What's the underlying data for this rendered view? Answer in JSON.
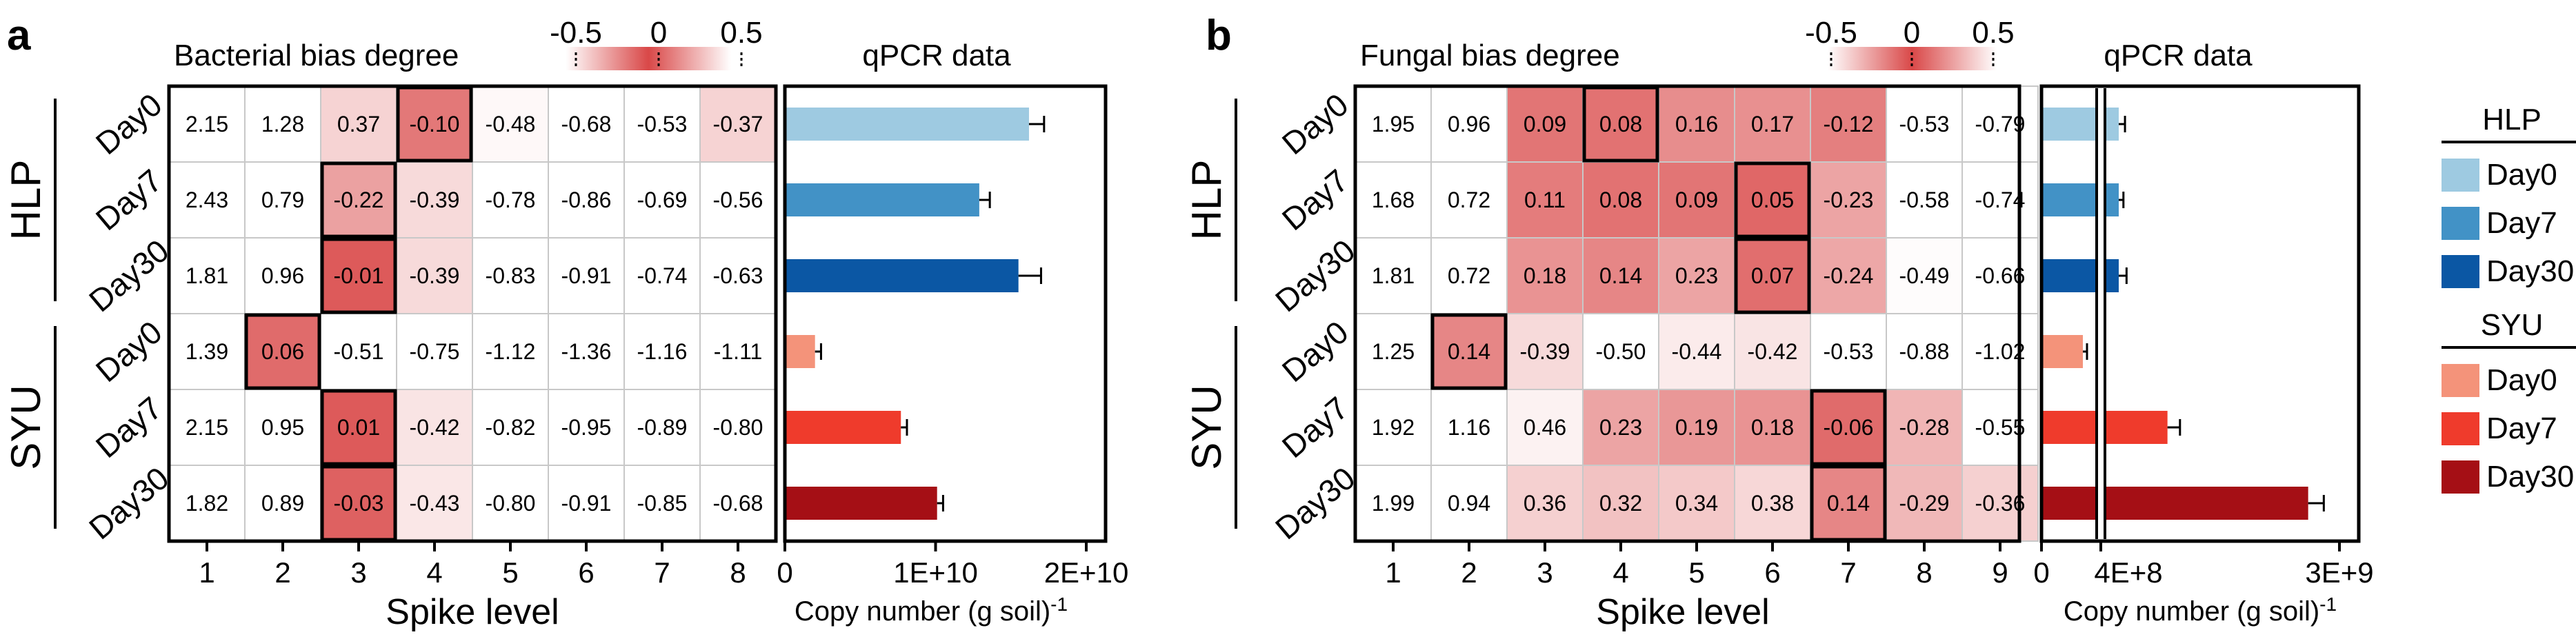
{
  "panels": {
    "a": {
      "letter": "a",
      "heatmap_title": "Bacterial bias degree",
      "qpcr_title": "qPCR data",
      "xlabel": "Spike level",
      "qpcr_xlabel": "Copy number (g soil)",
      "qpcr_xlabel_sup": "-1",
      "colorbar_ticks": [
        "-0.5",
        "0",
        "0.5"
      ],
      "groups": [
        "HLP",
        "SYU"
      ],
      "row_labels": [
        "Day0",
        "Day7",
        "Day30",
        "Day0",
        "Day7",
        "Day30"
      ],
      "spike_levels": [
        "1",
        "2",
        "3",
        "4",
        "5",
        "6",
        "7",
        "8"
      ],
      "qpcr_ticks": [
        "0",
        "1E+10",
        "2E+10"
      ]
    },
    "b": {
      "letter": "b",
      "heatmap_title": "Fungal bias degree",
      "qpcr_title": "qPCR data",
      "xlabel": "Spike level",
      "qpcr_xlabel": "Copy number (g soil)",
      "qpcr_xlabel_sup": "-1",
      "colorbar_ticks": [
        "-0.5",
        "0",
        "0.5"
      ],
      "groups": [
        "HLP",
        "SYU"
      ],
      "row_labels": [
        "Day0",
        "Day7",
        "Day30",
        "Day0",
        "Day7",
        "Day30"
      ],
      "spike_levels": [
        "1",
        "2",
        "3",
        "4",
        "5",
        "6",
        "7",
        "8",
        "9"
      ],
      "qpcr_ticks": [
        "0",
        "4E+8",
        "3E+9"
      ]
    }
  },
  "legend": {
    "groups": [
      {
        "title": "HLP",
        "items": [
          {
            "label": "Day0",
            "color": "#9ecae1"
          },
          {
            "label": "Day7",
            "color": "#4292c6"
          },
          {
            "label": "Day30",
            "color": "#0b57a4"
          }
        ]
      },
      {
        "title": "SYU",
        "items": [
          {
            "label": "Day0",
            "color": "#f4937a"
          },
          {
            "label": "Day7",
            "color": "#ef3b2c"
          },
          {
            "label": "Day30",
            "color": "#a50f15"
          }
        ]
      }
    ]
  },
  "chart_data": [
    {
      "type": "heatmap",
      "panel": "a",
      "title": "Bacterial bias degree",
      "xlabel": "Spike level",
      "x": [
        1,
        2,
        3,
        4,
        5,
        6,
        7,
        8
      ],
      "rows": [
        "HLP Day0",
        "HLP Day7",
        "HLP Day30",
        "SYU Day0",
        "SYU Day7",
        "SYU Day30"
      ],
      "values": [
        [
          2.15,
          1.28,
          0.37,
          -0.1,
          -0.48,
          -0.68,
          -0.53,
          -0.37
        ],
        [
          2.43,
          0.79,
          -0.22,
          -0.39,
          -0.78,
          -0.86,
          -0.69,
          -0.56
        ],
        [
          1.81,
          0.96,
          -0.01,
          -0.39,
          -0.83,
          -0.91,
          -0.74,
          -0.63
        ],
        [
          1.39,
          0.06,
          -0.51,
          -0.75,
          -1.12,
          -1.36,
          -1.16,
          -1.11
        ],
        [
          2.15,
          0.95,
          0.01,
          -0.42,
          -0.82,
          -0.95,
          -0.89,
          -0.8
        ],
        [
          1.82,
          0.89,
          -0.03,
          -0.43,
          -0.8,
          -0.91,
          -0.85,
          -0.68
        ]
      ],
      "value_labels": [
        [
          "2.15",
          "1.28",
          "0.37",
          "-0.10",
          "-0.48",
          "-0.68",
          "-0.53",
          "-0.37"
        ],
        [
          "2.43",
          "0.79",
          "-0.22",
          "-0.39",
          "-0.78",
          "-0.86",
          "-0.69",
          "-0.56"
        ],
        [
          "1.81",
          "0.96",
          "-0.01",
          "-0.39",
          "-0.83",
          "-0.91",
          "-0.74",
          "-0.63"
        ],
        [
          "1.39",
          "0.06",
          "-0.51",
          "-0.75",
          "-1.12",
          "-1.36",
          "-1.16",
          "-1.11"
        ],
        [
          "2.15",
          "0.95",
          "0.01",
          "-0.42",
          "-0.82",
          "-0.95",
          "-0.89",
          "-0.80"
        ],
        [
          "1.82",
          "0.89",
          "-0.03",
          "-0.43",
          "-0.80",
          "-0.91",
          "-0.85",
          "-0.68"
        ]
      ],
      "highlight_columns": [
        4,
        3,
        3,
        2,
        3,
        3
      ],
      "color_scale": {
        "min": -0.5,
        "max": 0.5,
        "ticks": [
          "-0.5",
          "0",
          "0.5"
        ]
      }
    },
    {
      "type": "bar",
      "panel": "a",
      "title": "qPCR data",
      "orientation": "horizontal",
      "xlabel": "Copy number (g soil)-1",
      "categories": [
        "HLP Day0",
        "HLP Day7",
        "HLP Day30",
        "SYU Day0",
        "SYU Day7",
        "SYU Day30"
      ],
      "values": [
        16200000000.0,
        12900000000.0,
        15500000000.0,
        2000000000.0,
        7700000000.0,
        10100000000.0
      ],
      "errors": [
        1000000000.0,
        700000000.0,
        1500000000.0,
        400000000.0,
        400000000.0,
        400000000.0
      ],
      "colors": [
        "#9ecae1",
        "#4292c6",
        "#0b57a4",
        "#f4937a",
        "#ef3b2c",
        "#a50f15"
      ],
      "xlim": [
        0,
        20000000000.0
      ],
      "ticks": [
        0,
        10000000000.0,
        20000000000.0
      ],
      "tick_labels": [
        "0",
        "1E+10",
        "2E+10"
      ]
    },
    {
      "type": "heatmap",
      "panel": "b",
      "title": "Fungal bias degree",
      "xlabel": "Spike level",
      "x": [
        1,
        2,
        3,
        4,
        5,
        6,
        7,
        8,
        9
      ],
      "rows": [
        "HLP Day0",
        "HLP Day7",
        "HLP Day30",
        "SYU Day0",
        "SYU Day7",
        "SYU Day30"
      ],
      "values": [
        [
          1.95,
          0.96,
          0.09,
          0.08,
          0.16,
          0.17,
          -0.12,
          -0.53,
          -0.79
        ],
        [
          1.68,
          0.72,
          0.11,
          0.08,
          0.09,
          0.05,
          -0.23,
          -0.58,
          -0.74
        ],
        [
          1.81,
          0.72,
          0.18,
          0.14,
          0.23,
          0.07,
          -0.24,
          -0.49,
          -0.66
        ],
        [
          1.25,
          0.14,
          -0.39,
          -0.5,
          -0.44,
          -0.42,
          -0.53,
          -0.88,
          -1.02
        ],
        [
          1.92,
          1.16,
          0.46,
          0.23,
          0.19,
          0.18,
          -0.06,
          -0.28,
          -0.55
        ],
        [
          1.99,
          0.94,
          0.36,
          0.32,
          0.34,
          0.38,
          0.14,
          -0.29,
          -0.36
        ]
      ],
      "value_labels": [
        [
          "1.95",
          "0.96",
          "0.09",
          "0.08",
          "0.16",
          "0.17",
          "-0.12",
          "-0.53",
          "-0.79"
        ],
        [
          "1.68",
          "0.72",
          "0.11",
          "0.08",
          "0.09",
          "0.05",
          "-0.23",
          "-0.58",
          "-0.74"
        ],
        [
          "1.81",
          "0.72",
          "0.18",
          "0.14",
          "0.23",
          "0.07",
          "-0.24",
          "-0.49",
          "-0.66"
        ],
        [
          "1.25",
          "0.14",
          "-0.39",
          "-0.50",
          "-0.44",
          "-0.42",
          "-0.53",
          "-0.88",
          "-1.02"
        ],
        [
          "1.92",
          "1.16",
          "0.46",
          "0.23",
          "0.19",
          "0.18",
          "-0.06",
          "-0.28",
          "-0.55"
        ],
        [
          "1.99",
          "0.94",
          "0.36",
          "0.32",
          "0.34",
          "0.38",
          "0.14",
          "-0.29",
          "-0.36"
        ]
      ],
      "highlight_columns": [
        4,
        6,
        6,
        2,
        7,
        7
      ],
      "color_scale": {
        "min": -0.5,
        "max": 0.5,
        "ticks": [
          "-0.5",
          "0",
          "0.5"
        ]
      }
    },
    {
      "type": "bar",
      "panel": "b",
      "title": "qPCR data",
      "orientation": "horizontal",
      "axis_break": [
        400000000.0,
        1500000000.0
      ],
      "xlabel": "Copy number (g soil)-1",
      "categories": [
        "HLP Day0",
        "HLP Day7",
        "HLP Day30",
        "SYU Day0",
        "SYU Day7",
        "SYU Day30"
      ],
      "values": [
        470000000.0,
        500000000.0,
        600000000.0,
        300000000.0,
        1900000000.0,
        2800000000.0
      ],
      "errors": [
        40000000.0,
        30000000.0,
        50000000.0,
        30000000.0,
        80000000.0,
        100000000.0
      ],
      "colors": [
        "#9ecae1",
        "#4292c6",
        "#0b57a4",
        "#f4937a",
        "#ef3b2c",
        "#a50f15"
      ],
      "ticks": [
        0,
        400000000.0,
        3000000000.0
      ],
      "tick_labels": [
        "0",
        "4E+8",
        "3E+9"
      ]
    }
  ]
}
